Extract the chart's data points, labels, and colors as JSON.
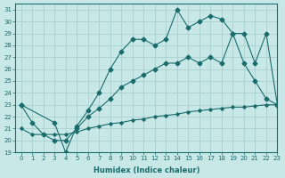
{
  "xlabel": "Humidex (Indice chaleur)",
  "bg_color": "#c8e8e8",
  "line_color": "#1a6b6b",
  "grid_color": "#a8d0d0",
  "xlim": [
    -0.5,
    23
  ],
  "ylim": [
    19,
    31.5
  ],
  "xticks": [
    0,
    1,
    2,
    3,
    4,
    5,
    6,
    7,
    8,
    9,
    10,
    11,
    12,
    13,
    14,
    15,
    16,
    17,
    18,
    19,
    20,
    21,
    22,
    23
  ],
  "yticks": [
    19,
    20,
    21,
    22,
    23,
    24,
    25,
    26,
    27,
    28,
    29,
    30,
    31
  ],
  "line1_x": [
    0,
    1,
    2,
    3,
    4,
    5,
    6,
    7,
    8,
    9,
    10,
    11,
    12,
    13,
    14,
    15,
    16,
    17,
    18,
    19,
    20,
    21,
    22,
    23
  ],
  "line1_y": [
    21.0,
    20.5,
    20.5,
    20.5,
    20.5,
    20.7,
    21.0,
    21.2,
    21.4,
    21.5,
    21.7,
    21.8,
    22.0,
    22.1,
    22.2,
    22.4,
    22.5,
    22.6,
    22.7,
    22.8,
    22.8,
    22.9,
    23.0,
    23.0
  ],
  "line2_x": [
    0,
    1,
    2,
    3,
    4,
    5,
    6,
    7,
    8,
    9,
    10,
    11,
    12,
    13,
    14,
    15,
    16,
    17,
    18,
    19,
    20,
    21,
    22,
    23
  ],
  "line2_y": [
    23.0,
    21.5,
    20.5,
    20.0,
    20.0,
    21.0,
    22.0,
    22.7,
    23.5,
    24.5,
    25.0,
    25.5,
    26.0,
    26.5,
    26.5,
    27.0,
    26.5,
    27.0,
    26.5,
    29.0,
    26.5,
    25.0,
    23.5,
    23.0
  ],
  "line2_has_markers": true,
  "line3_x": [
    0,
    3,
    4,
    5,
    6,
    7,
    8,
    9,
    10,
    11,
    12,
    13,
    14,
    15,
    16,
    17,
    18,
    19,
    20,
    21,
    22,
    23
  ],
  "line3_y": [
    23.0,
    21.5,
    19.0,
    21.2,
    22.5,
    24.0,
    26.0,
    27.5,
    28.5,
    28.5,
    28.0,
    28.5,
    31.0,
    29.5,
    30.0,
    30.5,
    30.2,
    29.0,
    29.0,
    26.5,
    29.0,
    23.0
  ],
  "line3_has_markers": true,
  "marker": "D",
  "markersize": 2.5
}
